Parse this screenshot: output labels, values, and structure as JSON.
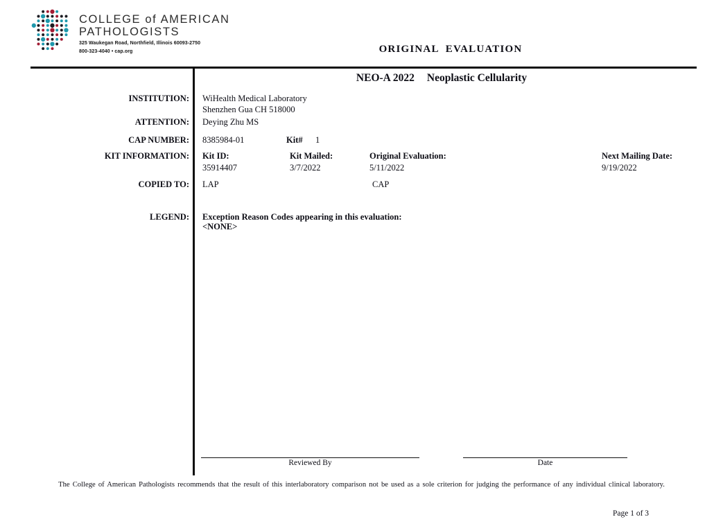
{
  "logo": {
    "name_line1": "COLLEGE of AMERICAN",
    "name_line2": "PATHOLOGISTS",
    "address_line1": "325 Waukegan Road, Northfield, Illinois 60093-2750",
    "address_line2": "800-323-4040  •  cap.org",
    "colors": {
      "teal": "#1e98ac",
      "red": "#a31c34",
      "dark": "#1c1c22"
    },
    "dot_grid": [
      "..krRt...",
      ".kTkkrkk.",
      ".tkTtktt.",
      "TkrtKrkt.",
      ".krtRtkT.",
      ".tktkrkt.",
      ".kTrktr..",
      ".rtkTk...",
      "..ktr...."
    ]
  },
  "header": {
    "report_type": "ORIGINAL EVALUATION",
    "program_code": "NEO-A 2022",
    "program_name": "Neoplastic Cellularity"
  },
  "fields": {
    "institution_label": "INSTITUTION:",
    "institution_line1": "WiHealth Medical Laboratory",
    "institution_line2": "Shenzhen Gua CH 518000",
    "attention_label": "ATTENTION:",
    "attention_value": "Deying Zhu MS",
    "cap_number_label": "CAP NUMBER:",
    "cap_number_value": "8385984-01",
    "kit_hash_label": "Kit#",
    "kit_hash_value": "1",
    "kit_information_label": "KIT INFORMATION:",
    "kit_id_label": "Kit ID:",
    "kit_id_value": "35914407",
    "kit_mailed_label": "Kit Mailed:",
    "kit_mailed_value": "3/7/2022",
    "original_evaluation_label": "Original Evaluation:",
    "original_evaluation_value": "5/11/2022",
    "next_mailing_label": "Next Mailing Date:",
    "next_mailing_value": "9/19/2022",
    "copied_to_label": "COPIED TO:",
    "copied_to_value1": "LAP",
    "copied_to_value2": "CAP",
    "legend_label": "LEGEND:",
    "legend_line1": "Exception Reason Codes appearing in this evaluation:",
    "legend_line2": "<NONE>"
  },
  "signature": {
    "reviewed_by_label": "Reviewed By",
    "date_label": "Date"
  },
  "footer": {
    "note": "The College of American Pathologists recommends that the result of this interlaboratory comparison not be used as a sole criterion for judging the performance of any individual clinical laboratory.",
    "page_number": "Page 1 of 3"
  }
}
